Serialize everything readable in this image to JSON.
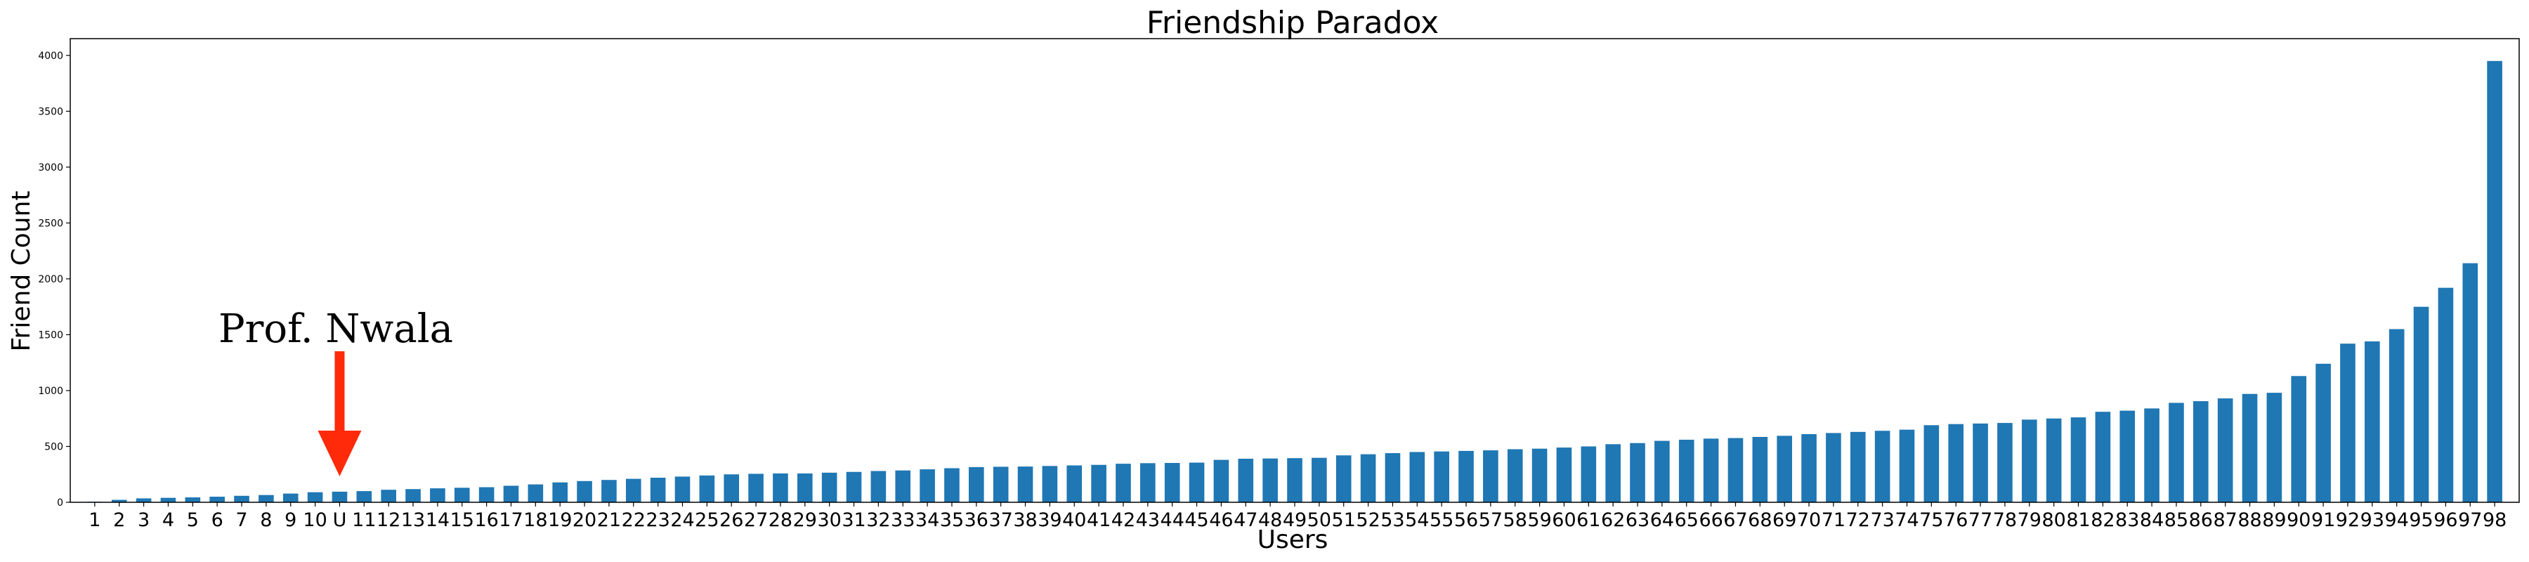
{
  "chart_data": {
    "type": "bar",
    "title": "Friendship Paradox",
    "xlabel": "Users",
    "ylabel": "Friend Count",
    "ylim": [
      0,
      4150
    ],
    "yticks": [
      0,
      500,
      1000,
      1500,
      2000,
      2500,
      3000,
      3500,
      4000
    ],
    "grid": false,
    "bar_color": "#1f77b4",
    "categories": [
      "1",
      "2",
      "3",
      "4",
      "5",
      "6",
      "7",
      "8",
      "9",
      "10",
      "U",
      "11",
      "12",
      "13",
      "14",
      "15",
      "16",
      "17",
      "18",
      "19",
      "20",
      "21",
      "22",
      "23",
      "24",
      "25",
      "26",
      "27",
      "28",
      "29",
      "30",
      "31",
      "32",
      "33",
      "34",
      "35",
      "36",
      "37",
      "38",
      "39",
      "40",
      "41",
      "42",
      "43",
      "44",
      "45",
      "46",
      "47",
      "48",
      "49",
      "50",
      "51",
      "52",
      "53",
      "54",
      "55",
      "56",
      "57",
      "58",
      "59",
      "60",
      "61",
      "62",
      "63",
      "64",
      "65",
      "66",
      "67",
      "68",
      "69",
      "70",
      "71",
      "72",
      "73",
      "74",
      "75",
      "76",
      "77",
      "78",
      "79",
      "80",
      "81",
      "82",
      "83",
      "84",
      "85",
      "86",
      "87",
      "88",
      "89",
      "90",
      "91",
      "92",
      "93",
      "94",
      "95",
      "96",
      "97",
      "98"
    ],
    "values": [
      5,
      22,
      35,
      40,
      44,
      50,
      58,
      65,
      78,
      90,
      95,
      100,
      112,
      118,
      125,
      130,
      135,
      148,
      160,
      178,
      190,
      200,
      210,
      220,
      230,
      240,
      250,
      255,
      258,
      258,
      265,
      272,
      280,
      285,
      295,
      305,
      315,
      318,
      320,
      325,
      330,
      335,
      345,
      350,
      352,
      355,
      380,
      390,
      392,
      395,
      398,
      420,
      430,
      440,
      450,
      455,
      460,
      465,
      475,
      480,
      490,
      500,
      520,
      530,
      550,
      560,
      570,
      575,
      585,
      595,
      610,
      620,
      630,
      640,
      650,
      690,
      700,
      705,
      710,
      740,
      750,
      760,
      810,
      820,
      840,
      890,
      905,
      930,
      970,
      980,
      1130,
      1240,
      1420,
      1440,
      1550,
      1750,
      1920,
      2140,
      3950
    ],
    "annotation": {
      "text": "Prof. Nwala",
      "target_category": "U",
      "arrow_color": "#ff2a0a"
    }
  }
}
